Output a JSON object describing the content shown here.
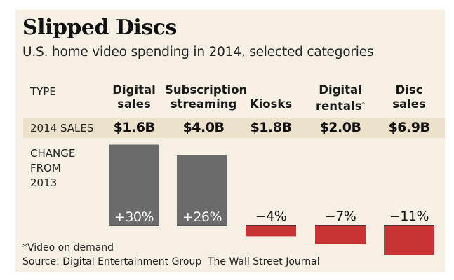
{
  "chart_data": {
    "type": "bar",
    "title": "Slipped Discs",
    "subtitle": "U.S. home video spending in 2014, selected categories",
    "row_labels": {
      "type": "TYPE",
      "sales": "2014 SALES",
      "change": [
        "CHANGE",
        "FROM",
        "2013"
      ]
    },
    "categories": [
      {
        "line1": "Digital",
        "line2": "sales",
        "footnote_mark": ""
      },
      {
        "line1": "Subscription",
        "line2": "streaming",
        "footnote_mark": ""
      },
      {
        "line1": "",
        "line2": "Kiosks",
        "footnote_mark": ""
      },
      {
        "line1": "Digital",
        "line2": "rentals",
        "footnote_mark": "*"
      },
      {
        "line1": "Disc",
        "line2": "sales",
        "footnote_mark": ""
      }
    ],
    "sales_2014": [
      "$1.6B",
      "$4.0B",
      "$1.8B",
      "$2.0B",
      "$6.9B"
    ],
    "series": [
      {
        "name": "Change from 2013 (%)",
        "values": [
          30,
          26,
          -4,
          -7,
          -11
        ]
      }
    ],
    "value_labels": [
      "+30%",
      "+26%",
      "−4%",
      "−7%",
      "−11%"
    ],
    "colors": {
      "positive": "#6b6b6b",
      "negative": "#c83333",
      "baseline": "#2a2a2a"
    },
    "xlabel": "",
    "ylabel": "",
    "ylim": [
      -11,
      30
    ],
    "grid": false,
    "legend": "none"
  },
  "footer": {
    "footnote": "*Video on demand",
    "source": "Source: Digital Entertainment Group",
    "credit": "The Wall Street Journal"
  }
}
